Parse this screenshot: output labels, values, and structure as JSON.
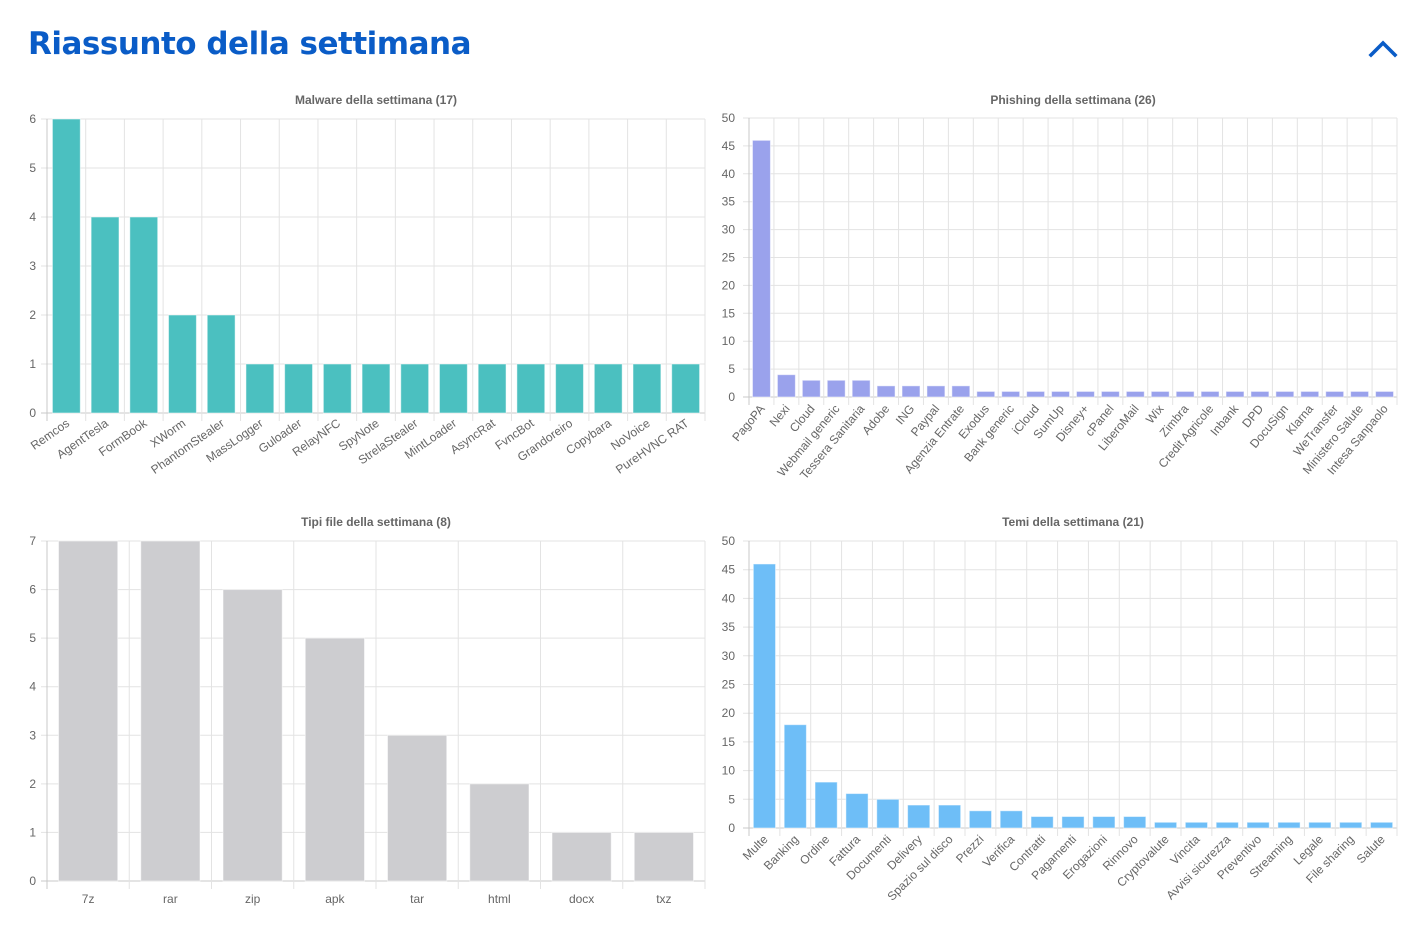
{
  "header": {
    "title": "Riassunto della settimana",
    "collapse_icon": "chevron-up-icon",
    "accent_color": "#0a5cc7"
  },
  "chart_data": [
    {
      "id": "malware",
      "type": "bar",
      "title": "Malware della settimana (17)",
      "xlabel": "",
      "ylabel": "",
      "color": "#4bc0c0",
      "ylim": [
        0,
        6
      ],
      "ystep": 1,
      "grid": true,
      "legend": "none",
      "label_rotation": 35,
      "categories": [
        "Remcos",
        "AgentTesla",
        "FormBook",
        "XWorm",
        "PhantomStealer",
        "MassLogger",
        "Guloader",
        "RelayNFC",
        "SpyNote",
        "StrelaStealer",
        "MintLoader",
        "AsyncRat",
        "FvncBot",
        "Grandoreiro",
        "Copybara",
        "NoVoice",
        "PureHVNC RAT"
      ],
      "values": [
        6,
        4,
        4,
        2,
        2,
        1,
        1,
        1,
        1,
        1,
        1,
        1,
        1,
        1,
        1,
        1,
        1
      ]
    },
    {
      "id": "phishing",
      "type": "bar",
      "title": "Phishing della settimana (26)",
      "xlabel": "",
      "ylabel": "",
      "color": "#9aa2ec",
      "ylim": [
        0,
        50
      ],
      "ystep": 5,
      "grid": true,
      "legend": "none",
      "label_rotation": 50,
      "categories": [
        "PagoPA",
        "Nexi",
        "Cloud",
        "Webmail generic",
        "Tessera Sanitaria",
        "Adobe",
        "ING",
        "Paypal",
        "Agenzia Entrate",
        "Exodus",
        "Bank generic",
        "iCloud",
        "SumUp",
        "Disney+",
        "cPanel",
        "LiberoMail",
        "Wix",
        "Zimbra",
        "Credit Agricole",
        "Inbank",
        "DPD",
        "DocuSign",
        "Klarna",
        "WeTransfer",
        "Ministero Salute",
        "Intesa Sanpaolo"
      ],
      "values": [
        46,
        4,
        3,
        3,
        3,
        2,
        2,
        2,
        2,
        1,
        1,
        1,
        1,
        1,
        1,
        1,
        1,
        1,
        1,
        1,
        1,
        1,
        1,
        1,
        1,
        1
      ]
    },
    {
      "id": "filetypes",
      "type": "bar",
      "title": "Tipi file della settimana (8)",
      "xlabel": "",
      "ylabel": "",
      "color": "#cdcdd0",
      "ylim": [
        0,
        7
      ],
      "ystep": 1,
      "grid": true,
      "legend": "none",
      "label_rotation": 0,
      "categories": [
        "7z",
        "rar",
        "zip",
        "apk",
        "tar",
        "html",
        "docx",
        "txz"
      ],
      "values": [
        7,
        7,
        6,
        5,
        3,
        2,
        1,
        1
      ]
    },
    {
      "id": "themes",
      "type": "bar",
      "title": "Temi della settimana (21)",
      "xlabel": "",
      "ylabel": "",
      "color": "#6ebef7",
      "ylim": [
        0,
        50
      ],
      "ystep": 5,
      "grid": true,
      "legend": "none",
      "label_rotation": 45,
      "categories": [
        "Multe",
        "Banking",
        "Ordine",
        "Fattura",
        "Documenti",
        "Delivery",
        "Spazio sul disco",
        "Prezzi",
        "Verifica",
        "Contratti",
        "Pagamenti",
        "Erogazioni",
        "Rinnovo",
        "Cryptovalute",
        "Vincita",
        "Avvisi sicurezza",
        "Preventivo",
        "Streaming",
        "Legale",
        "File sharing",
        "Salute"
      ],
      "values": [
        46,
        18,
        8,
        6,
        5,
        4,
        4,
        3,
        3,
        2,
        2,
        2,
        2,
        1,
        1,
        1,
        1,
        1,
        1,
        1,
        1
      ]
    }
  ]
}
